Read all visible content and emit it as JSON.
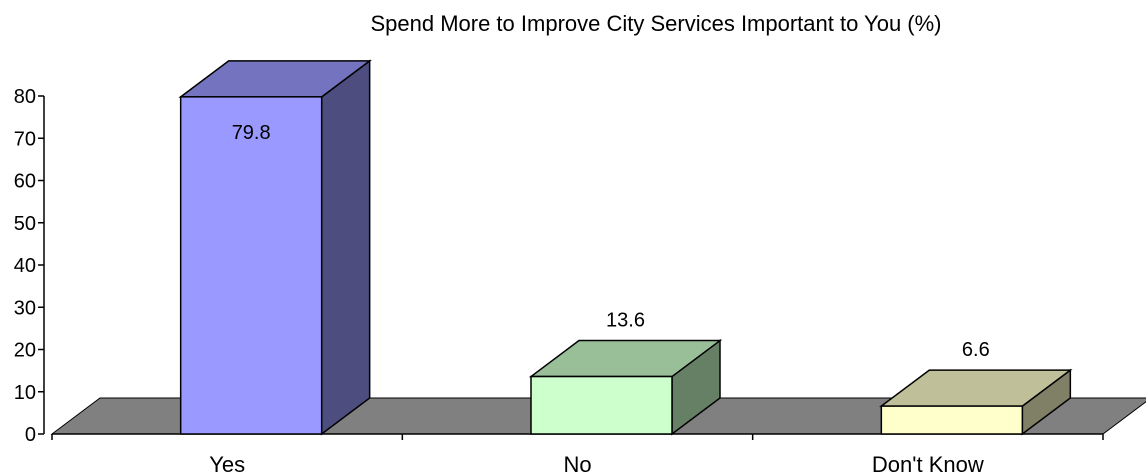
{
  "chart_data": {
    "type": "bar",
    "title": "Spend More to Improve City Services Important to You (%)",
    "categories": [
      "Yes",
      "No",
      "Don't Know"
    ],
    "values": [
      79.8,
      13.6,
      6.6
    ],
    "data_labels": [
      "79.8",
      "13.6",
      "6.6"
    ],
    "xlabel": "",
    "ylabel": "",
    "ylim": [
      0,
      80
    ],
    "yticks": [
      0,
      10,
      20,
      30,
      40,
      50,
      60,
      70,
      80
    ],
    "grid": false,
    "legend": "none",
    "style": "3d-column",
    "colors": {
      "bars": [
        {
          "front": "#9999ff",
          "top": "#7373c0",
          "side": "#4d4d80"
        },
        {
          "front": "#ccffcc",
          "top": "#99bf99",
          "side": "#668066"
        },
        {
          "front": "#ffffcc",
          "top": "#bfbf99",
          "side": "#808066"
        }
      ],
      "floor": "#808080",
      "axis": "#000000"
    }
  }
}
